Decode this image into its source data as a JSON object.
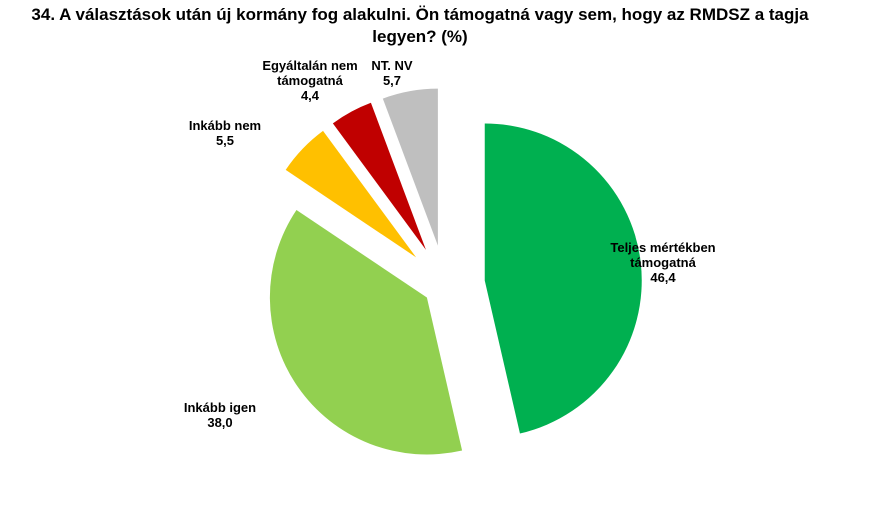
{
  "chart_data": {
    "type": "pie",
    "title": "34. A választások után új kormány fog alakulni. Ön támogatná vagy sem, hogy az RMDSZ a tagja legyen? (%)",
    "categories": [
      "Teljes mértékben támogatná",
      "Inkább igen",
      "Inkább nem",
      "Egyáltalán nem támogatná",
      "NT. NV"
    ],
    "values": [
      46.4,
      38.0,
      5.5,
      4.4,
      5.7
    ],
    "value_labels": [
      "46,4",
      "38,0",
      "5,5",
      "4,4",
      "5,7"
    ],
    "colors": [
      "#00b050",
      "#92d050",
      "#ffc000",
      "#c00000",
      "#bfbfbf"
    ]
  }
}
